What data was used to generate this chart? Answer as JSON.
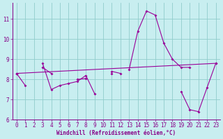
{
  "xlabel": "Windchill (Refroidissement éolien,°C)",
  "background_color": "#c8eef0",
  "line_color": "#990099",
  "grid_color": "#90cccc",
  "x_hours": [
    0,
    1,
    2,
    3,
    4,
    5,
    6,
    7,
    8,
    9,
    10,
    11,
    12,
    13,
    14,
    15,
    16,
    17,
    18,
    19,
    20,
    21,
    22,
    23
  ],
  "series1": [
    8.3,
    7.7,
    null,
    8.8,
    7.5,
    7.7,
    7.8,
    7.9,
    8.2,
    7.3,
    null,
    8.3,
    null,
    8.5,
    10.4,
    11.4,
    11.2,
    9.8,
    9.0,
    8.6,
    8.6,
    null,
    null,
    8.8
  ],
  "series2": [
    8.3,
    null,
    null,
    8.6,
    8.3,
    null,
    null,
    8.0,
    8.05,
    null,
    null,
    8.4,
    8.3,
    null,
    null,
    null,
    null,
    null,
    null,
    null,
    null,
    null,
    null,
    null
  ],
  "series3": [
    8.3,
    null,
    null,
    null,
    null,
    null,
    null,
    null,
    null,
    null,
    null,
    null,
    null,
    null,
    null,
    null,
    null,
    null,
    null,
    7.4,
    6.5,
    6.4,
    7.6,
    8.8
  ],
  "trend_x": [
    0,
    23
  ],
  "trend_y": [
    8.3,
    8.8
  ],
  "ylim": [
    6.0,
    11.8
  ],
  "yticks": [
    6,
    7,
    8,
    9,
    10,
    11
  ],
  "xticks": [
    0,
    1,
    2,
    3,
    4,
    5,
    6,
    7,
    8,
    9,
    10,
    11,
    12,
    13,
    14,
    15,
    16,
    17,
    18,
    19,
    20,
    21,
    22,
    23
  ],
  "spine_color": "#880088",
  "tick_color": "#880088",
  "label_fontsize": 5.5,
  "tick_fontsize": 5.5
}
